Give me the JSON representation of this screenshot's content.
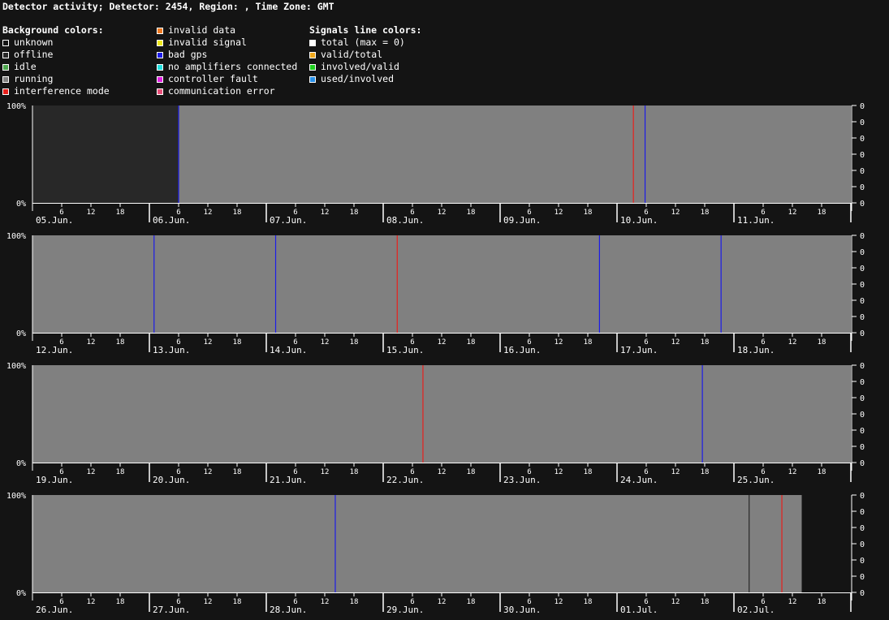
{
  "header": {
    "title": "Detector activity; Detector: 2454, Region: , Time Zone: GMT"
  },
  "legend": {
    "background_title": "Background colors:",
    "signals_title": "Signals line colors:",
    "background_a": [
      {
        "label": "unknown",
        "color": "#141414"
      },
      {
        "label": "offline",
        "color": "#282828"
      },
      {
        "label": "idle",
        "color": "#4ea64e"
      },
      {
        "label": "running",
        "color": "#808080"
      },
      {
        "label": "interference mode",
        "color": "#e8201c"
      }
    ],
    "background_b": [
      {
        "label": "invalid data",
        "color": "#f07a22"
      },
      {
        "label": "invalid signal",
        "color": "#f0e81c"
      },
      {
        "label": "bad gps",
        "color": "#1c1ce8"
      },
      {
        "label": "no amplifiers connected",
        "color": "#22e0e0"
      },
      {
        "label": "controller fault",
        "color": "#e020e0"
      },
      {
        "label": "communication error",
        "color": "#e8507a"
      }
    ],
    "signals": [
      {
        "label": "total (max = 0)",
        "color": "#ffffff"
      },
      {
        "label": "valid/total",
        "color": "#f0a81c"
      },
      {
        "label": "involved/valid",
        "color": "#20d020"
      },
      {
        "label": "used/involved",
        "color": "#2890e8"
      }
    ]
  },
  "chart_data": {
    "type": "timeline",
    "y_left_labels": [
      "100%",
      "0%"
    ],
    "y_right_labels": [
      "0",
      "0",
      "0",
      "0",
      "0",
      "0",
      "0"
    ],
    "hour_ticks": [
      "6",
      "12",
      "18"
    ],
    "colors": {
      "unknown": "#141414",
      "offline": "#282828",
      "running": "#808080",
      "interference": "#e8201c",
      "bad_gps": "#1c1ce8"
    },
    "rows": [
      {
        "days": [
          "05.Jun.",
          "06.Jun.",
          "07.Jun.",
          "08.Jun.",
          "09.Jun.",
          "10.Jun.",
          "11.Jun."
        ],
        "segments": [
          {
            "state": "offline",
            "start": 0,
            "end": 1.25
          },
          {
            "state": "running",
            "start": 1.25,
            "end": 7
          }
        ],
        "lines": [
          {
            "state": "bad_gps",
            "at": 1.25
          },
          {
            "state": "interference",
            "at": 5.14
          },
          {
            "state": "bad_gps",
            "at": 5.24
          }
        ]
      },
      {
        "days": [
          "12.Jun.",
          "13.Jun.",
          "14.Jun.",
          "15.Jun.",
          "16.Jun.",
          "17.Jun.",
          "18.Jun."
        ],
        "segments": [
          {
            "state": "running",
            "start": 0,
            "end": 7
          }
        ],
        "lines": [
          {
            "state": "bad_gps",
            "at": 1.04
          },
          {
            "state": "bad_gps",
            "at": 2.08
          },
          {
            "state": "interference",
            "at": 3.12
          },
          {
            "state": "bad_gps",
            "at": 4.85
          },
          {
            "state": "bad_gps",
            "at": 5.89
          }
        ]
      },
      {
        "days": [
          "19.Jun.",
          "20.Jun.",
          "21.Jun.",
          "22.Jun.",
          "23.Jun.",
          "24.Jun.",
          "25.Jun."
        ],
        "segments": [
          {
            "state": "running",
            "start": 0,
            "end": 7
          }
        ],
        "lines": [
          {
            "state": "interference",
            "at": 3.34
          },
          {
            "state": "bad_gps",
            "at": 5.73
          }
        ]
      },
      {
        "days": [
          "26.Jun.",
          "27.Jun.",
          "28.Jun.",
          "29.Jun.",
          "30.Jun.",
          "01.Jul.",
          "02.Jul."
        ],
        "segments": [
          {
            "state": "running",
            "start": 0,
            "end": 6.58
          },
          {
            "state": "unknown",
            "start": 6.58,
            "end": 7
          }
        ],
        "lines": [
          {
            "state": "bad_gps",
            "at": 2.59
          },
          {
            "state": "offline",
            "at": 6.13
          },
          {
            "state": "interference",
            "at": 6.41
          }
        ]
      }
    ]
  }
}
